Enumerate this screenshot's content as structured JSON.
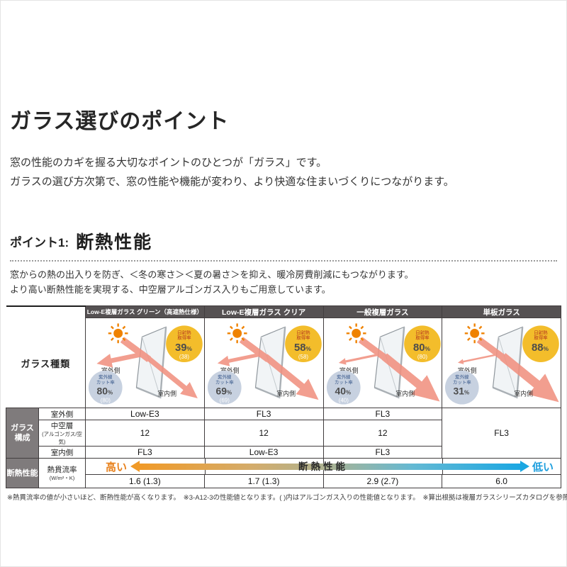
{
  "page": {
    "title": "ガラス選びのポイント",
    "intro_line1": "窓の性能のカギを握る大切なポイントのひとつが「ガラス」です。",
    "intro_line2": "ガラスの選び方次第で、窓の性能や機能が変わり、より快適な住まいづくりにつながります。",
    "point_label": "ポイント1:",
    "point_title": "断熱性能",
    "point_desc1": "窓からの熱の出入りを防ぎ、＜冬の寒さ＞＜夏の暑さ＞を抑え、暖冷房費削減にもつながります。",
    "point_desc2": "より高い断熱性能を実現する、中空層アルゴンガス入りもご用意しています。",
    "footnote": "※熱貫流率の値が小さいほど、断熱性能が高くなります。　※3-A12-3の性能値となります。( )内はアルゴンガス入りの性能値となります。　※算出根拠は複層ガラスシリーズカタログを参照してください。"
  },
  "table": {
    "headers": [
      "Low-E複層ガラス グリーン（高遮熱仕様）",
      "Low-E複層ガラス クリア",
      "一般複層ガラス",
      "単板ガラス"
    ],
    "row_labels": {
      "glass_type": "ガラス種類",
      "construction": "ガラス\n構成",
      "outdoor": "室外側",
      "air_layer": "中空層",
      "air_layer_sub": "(アルゴンガス/空気)",
      "indoor": "室内側",
      "insulation": "断熱性能",
      "u_value": "熱貫流率",
      "u_value_unit": "(W/m²・K)"
    },
    "arrow": {
      "left": "高い",
      "center": "断熱性能",
      "right": "低い"
    },
    "columns": [
      {
        "solar_label_1": "日射熱",
        "solar_label_2": "取得率",
        "solar_value": "39%",
        "solar_paren": "(38)",
        "uv_label_1": "紫外線",
        "uv_label_2": "カット率",
        "uv_value": "80%",
        "uv_paren": "(80)",
        "outdoor_side_label": "室外側",
        "indoor_side_label": "室内側",
        "outdoor": "Low-E3",
        "air_layer": "12",
        "indoor": "FL3",
        "u_value": "1.6 (1.3)"
      },
      {
        "solar_label_1": "日射熱",
        "solar_label_2": "取得率",
        "solar_value": "58%",
        "solar_paren": "(58)",
        "uv_label_1": "紫外線",
        "uv_label_2": "カット率",
        "uv_value": "69%",
        "uv_paren": "(69)",
        "outdoor_side_label": "室外側",
        "indoor_side_label": "室内側",
        "outdoor": "FL3",
        "air_layer": "12",
        "indoor": "Low-E3",
        "u_value": "1.7 (1.3)"
      },
      {
        "solar_label_1": "日射熱",
        "solar_label_2": "取得率",
        "solar_value": "80%",
        "solar_paren": "(80)",
        "uv_label_1": "紫外線",
        "uv_label_2": "カット率",
        "uv_value": "40%",
        "uv_paren": "(40)",
        "outdoor_side_label": "室外側",
        "indoor_side_label": "室内側",
        "outdoor": "FL3",
        "air_layer": "12",
        "indoor": "FL3",
        "u_value": "2.9 (2.7)"
      },
      {
        "solar_label_1": "日射熱",
        "solar_label_2": "取得率",
        "solar_value": "88%",
        "solar_paren": "",
        "uv_label_1": "紫外線",
        "uv_label_2": "カット率",
        "uv_value": "31%",
        "uv_paren": "",
        "outdoor_side_label": "室外側",
        "indoor_side_label": "室内側",
        "construction_merged": "FL3",
        "u_value": "6.0"
      }
    ]
  },
  "colors": {
    "header_bg": "#555152",
    "label_gray_bg": "#7f7b7c",
    "solar_badge": "#f3bd2b",
    "solar_badge_label": "#b5371f",
    "uv_badge": "#c7d1e0",
    "uv_badge_label": "#3a5a8c",
    "sun_orange": "#ef8200",
    "heat_arrow": "#f19180",
    "grad_left": "#f09a28",
    "grad_right": "#1ba7e2",
    "high_text": "#e8821e",
    "low_text": "#1f9fde"
  }
}
